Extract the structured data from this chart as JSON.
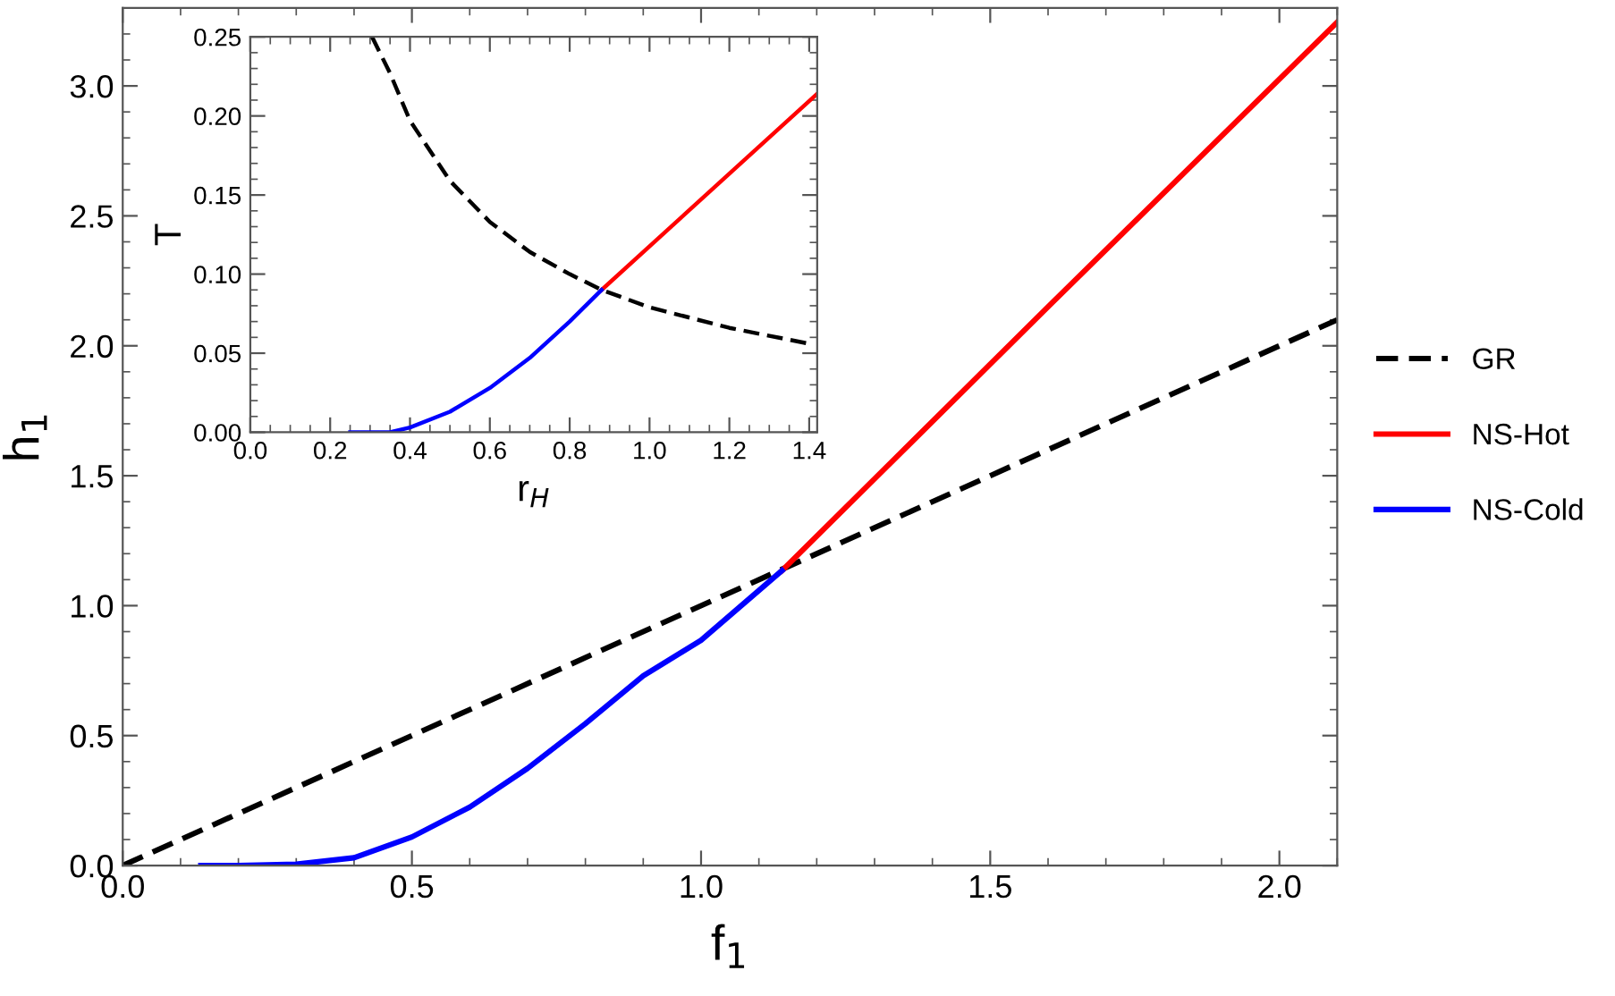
{
  "chart_data": [
    {
      "type": "line",
      "xlabel": "f$_{1}$",
      "ylabel": "h$_{1}$",
      "xlim": [
        0,
        2.1
      ],
      "ylim": [
        0,
        3.3
      ],
      "xticks": [
        {
          "value": 0,
          "label": "0.0"
        },
        0.5,
        {
          "value": 1,
          "label": "1.0"
        },
        1.5,
        {
          "value": 2,
          "label": "2.0"
        }
      ],
      "yticks": [
        {
          "value": 0,
          "label": "0.0"
        },
        0.5,
        {
          "value": 1,
          "label": "1.0"
        },
        1.5,
        {
          "value": 2,
          "label": "2.0"
        },
        2.5,
        {
          "value": 3,
          "label": "3.0"
        }
      ],
      "grid": false,
      "legend": "right",
      "marker": "none",
      "series": [
        {
          "name": "GR",
          "color": "#000000",
          "line_style": "dashed",
          "x": [
            0,
            2.1
          ],
          "values": [
            0,
            2.1
          ]
        },
        {
          "name": "NS-Hot",
          "color": "#ff0000",
          "line_style": "solid",
          "x": [
            1.14,
            1.6,
            2.1
          ],
          "values": [
            1.135,
            2.15,
            3.245
          ]
        },
        {
          "name": "NS-Cold",
          "color": "#0000ff",
          "line_style": "solid",
          "x": [
            0.135,
            0.2,
            0.3,
            0.4,
            0.5,
            0.6,
            0.7,
            0.8,
            0.9,
            1.0,
            1.14
          ],
          "values": [
            0,
            0,
            0.005,
            0.03,
            0.11,
            0.225,
            0.374,
            0.546,
            0.73,
            0.867,
            1.135
          ]
        }
      ]
    },
    {
      "type": "line",
      "xlabel": "r$_{H}$",
      "ylabel": "T",
      "xlim": [
        0,
        1.42
      ],
      "ylim": [
        0,
        0.25
      ],
      "xticks": [
        {
          "value": 0,
          "label": "0.0"
        },
        0.2,
        0.4,
        0.6,
        0.8,
        {
          "value": 1,
          "label": "1.0"
        },
        1.2,
        1.4
      ],
      "yticks": [
        {
          "value": 0,
          "label": "0.00"
        },
        0.05,
        {
          "value": 0.1,
          "label": "0.10"
        },
        0.15,
        {
          "value": 0.2,
          "label": "0.20"
        },
        0.25
      ],
      "grid": false,
      "marker": "none",
      "series": [
        {
          "color": "#000000",
          "line_style": "dashed",
          "x": [
            0.305,
            0.35,
            0.4,
            0.5,
            0.6,
            0.7,
            0.8,
            0.88,
            1.0,
            1.2,
            1.4
          ],
          "values": [
            0.25,
            0.227,
            0.197,
            0.159,
            0.133,
            0.114,
            0.1,
            0.09,
            0.079,
            0.066,
            0.056
          ]
        },
        {
          "color": "#ff0000",
          "line_style": "solid",
          "x": [
            0.88,
            1.42
          ],
          "values": [
            0.09,
            0.214
          ]
        },
        {
          "color": "#0000ff",
          "line_style": "solid",
          "x": [
            0.25,
            0.35,
            0.4,
            0.5,
            0.6,
            0.7,
            0.8,
            0.88
          ],
          "values": [
            0,
            0,
            0.003,
            0.013,
            0.028,
            0.047,
            0.07,
            0.09
          ]
        }
      ]
    }
  ]
}
